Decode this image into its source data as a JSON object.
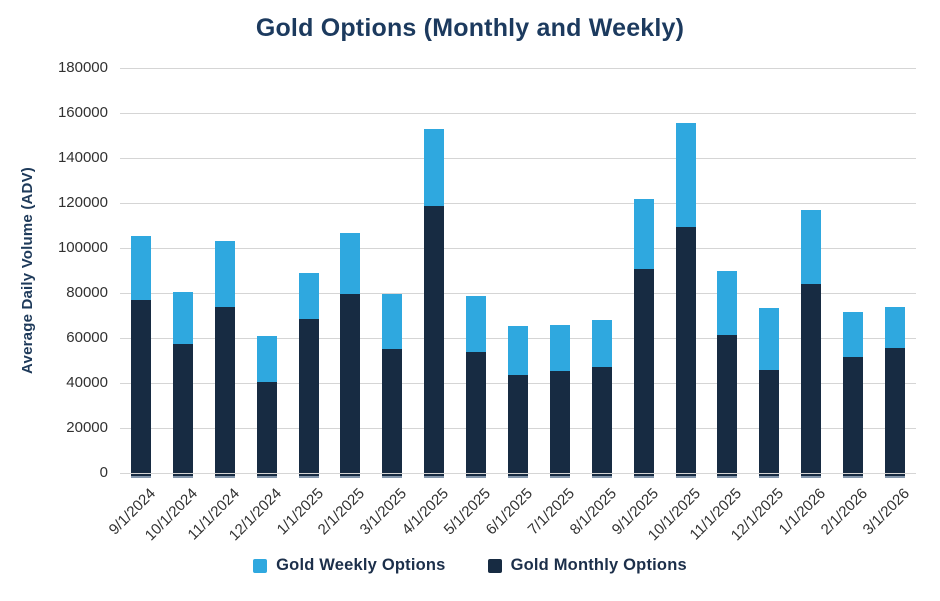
{
  "chart_data": {
    "type": "bar",
    "stacked": true,
    "title": "Gold Options (Monthly and Weekly)",
    "ylabel": "Average Daily Volume (ADV)",
    "xlabel": "",
    "ylim": [
      0,
      180000
    ],
    "yticks": [
      0,
      20000,
      40000,
      60000,
      80000,
      100000,
      120000,
      140000,
      160000,
      180000
    ],
    "grid": "horizontal",
    "legend_position": "bottom",
    "categories": [
      "9/1/2024",
      "10/1/2024",
      "11/1/2024",
      "12/1/2024",
      "1/1/2025",
      "2/1/2025",
      "3/1/2025",
      "4/1/2025",
      "5/1/2025",
      "6/1/2025",
      "7/1/2025",
      "8/1/2025",
      "9/1/2025",
      "10/1/2025",
      "11/1/2025",
      "12/1/2025",
      "1/1/2026",
      "2/1/2026",
      "3/1/2026"
    ],
    "series": [
      {
        "name": "Gold Weekly Options",
        "color": "#2FA8DF",
        "values": [
          28500,
          23000,
          29000,
          20500,
          20500,
          27000,
          24500,
          34500,
          24500,
          22000,
          20500,
          21000,
          31500,
          46000,
          28500,
          27500,
          33000,
          20000,
          18500
        ]
      },
      {
        "name": "Gold Monthly Options",
        "color": "#172B42",
        "values": [
          77000,
          57500,
          74000,
          40500,
          68500,
          79500,
          55000,
          118500,
          54000,
          43500,
          45500,
          47000,
          90500,
          109500,
          61500,
          46000,
          84000,
          51500,
          55500
        ]
      }
    ],
    "stack_order_bottom_to_top": [
      "Gold Monthly Options",
      "Gold Weekly Options"
    ]
  },
  "colors": {
    "title_text": "#1C3A5E",
    "axis_text": "#313131",
    "gridline": "#d5d5d5",
    "weekly_blue": "#2FA8DF",
    "monthly_navy": "#172B42"
  },
  "legend": {
    "items": [
      {
        "label": "Gold Weekly Options",
        "color": "#2FA8DF"
      },
      {
        "label": "Gold Monthly Options",
        "color": "#172B42"
      }
    ]
  }
}
